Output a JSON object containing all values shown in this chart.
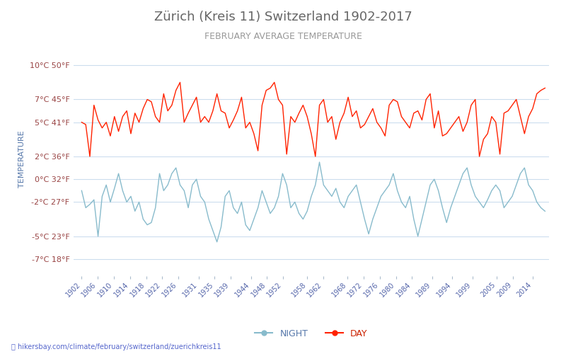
{
  "title": "Zürich (Kreis 11) Switzerland 1902-2017",
  "subtitle": "FEBRUARY AVERAGE TEMPERATURE",
  "ylabel": "TEMPERATURE",
  "title_color": "#555555",
  "subtitle_color": "#888888",
  "ylabel_color": "#5577aa",
  "background_color": "#ffffff",
  "plot_bg_color": "#ffffff",
  "grid_color": "#ccddee",
  "yticks_celsius": [
    10,
    7,
    5,
    2,
    0,
    -2,
    -5,
    -7
  ],
  "yticks_fahrenheit": [
    50,
    45,
    41,
    36,
    32,
    27,
    23,
    18
  ],
  "ylim": [
    -8.5,
    12
  ],
  "xtick_labels": [
    "1902",
    "1906",
    "1910",
    "1914",
    "1918",
    "1922",
    "1926",
    "1931",
    "1935",
    "1939",
    "1944",
    "1948",
    "1952",
    "1958",
    "1962",
    "1968",
    "1972",
    "1976",
    "1980",
    "1984",
    "1989",
    "1994",
    "1999",
    "2005",
    "2009",
    "2014"
  ],
  "day_color": "#ff2200",
  "night_color": "#88bbcc",
  "legend_day": "DAY",
  "legend_night": "NIGHT",
  "watermark": "hikersbay.com/climate/february/switzerland/zuerichkreis11",
  "day_values": [
    5.0,
    4.8,
    2.0,
    6.5,
    5.2,
    4.5,
    5.0,
    3.8,
    5.5,
    4.2,
    5.5,
    6.0,
    4.0,
    5.8,
    5.0,
    6.2,
    7.0,
    6.8,
    5.5,
    5.0,
    7.5,
    6.0,
    6.5,
    7.8,
    8.5,
    5.0,
    5.8,
    6.5,
    7.2,
    5.0,
    5.5,
    5.0,
    6.0,
    7.5,
    6.0,
    5.8,
    4.5,
    5.2,
    6.0,
    7.2,
    4.5,
    5.0,
    4.0,
    2.5,
    6.5,
    7.8,
    8.0,
    8.5,
    7.0,
    6.5,
    2.2,
    5.5,
    5.0,
    5.8,
    6.5,
    5.5,
    4.0,
    2.0,
    6.5,
    7.0,
    5.0,
    5.5,
    3.5,
    5.0,
    5.8,
    7.2,
    5.5,
    6.0,
    4.5,
    4.8,
    5.5,
    6.2,
    5.0,
    4.5,
    3.8,
    6.5,
    7.0,
    6.8,
    5.5,
    5.0,
    4.5,
    5.8,
    6.0,
    5.2,
    7.0,
    7.5,
    4.5,
    6.0,
    3.8,
    4.0,
    4.5,
    5.0,
    5.5,
    4.2,
    5.0,
    6.5,
    7.0,
    2.0,
    3.5,
    4.0,
    5.5,
    5.0,
    2.2,
    5.8,
    6.0,
    6.5,
    7.0,
    5.5,
    4.0,
    5.5,
    6.2,
    7.5,
    7.8,
    8.0
  ],
  "night_values": [
    -1.0,
    -2.5,
    -2.2,
    -1.8,
    -5.0,
    -1.5,
    -0.5,
    -2.0,
    -0.8,
    0.5,
    -1.0,
    -2.0,
    -1.5,
    -2.8,
    -2.0,
    -3.5,
    -4.0,
    -3.8,
    -2.5,
    0.5,
    -1.0,
    -0.5,
    0.5,
    1.0,
    -0.5,
    -1.0,
    -2.5,
    -0.5,
    0.0,
    -1.5,
    -2.0,
    -3.5,
    -4.5,
    -5.5,
    -4.2,
    -1.5,
    -1.0,
    -2.5,
    -3.0,
    -2.0,
    -4.0,
    -4.5,
    -3.5,
    -2.5,
    -1.0,
    -2.0,
    -3.0,
    -2.5,
    -1.5,
    0.5,
    -0.5,
    -2.5,
    -2.0,
    -3.0,
    -3.5,
    -2.8,
    -1.5,
    -0.5,
    1.5,
    -0.5,
    -1.0,
    -1.5,
    -0.8,
    -2.0,
    -2.5,
    -1.5,
    -1.0,
    -0.5,
    -2.0,
    -3.5,
    -4.8,
    -3.5,
    -2.5,
    -1.5,
    -1.0,
    -0.5,
    0.5,
    -1.0,
    -2.0,
    -2.5,
    -1.5,
    -3.5,
    -5.0,
    -3.5,
    -2.0,
    -0.5,
    0.0,
    -1.0,
    -2.5,
    -3.8,
    -2.5,
    -1.5,
    -0.5,
    0.5,
    1.0,
    -0.5,
    -1.5,
    -2.0,
    -2.5,
    -1.8,
    -1.0,
    -0.5,
    -1.0,
    -2.5,
    -2.0,
    -1.5,
    -0.5,
    0.5,
    1.0,
    -0.5,
    -1.0,
    -2.0,
    -2.5,
    -2.8
  ]
}
